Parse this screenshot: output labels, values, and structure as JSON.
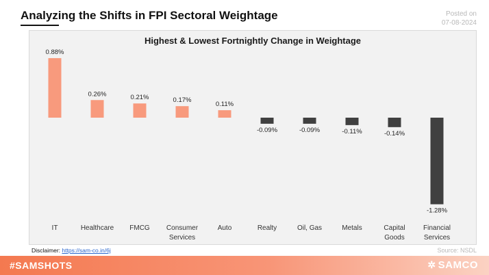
{
  "header": {
    "title": "Analyzing the Shifts in FPI Sectoral Weightage",
    "posted_label": "Posted on",
    "posted_date": "07-08-2024"
  },
  "chart_data": {
    "type": "bar",
    "title": "Highest & Lowest Fortnightly Change in Weightage",
    "categories": [
      [
        "IT"
      ],
      [
        "Healthcare"
      ],
      [
        "FMCG"
      ],
      [
        "Consumer",
        "Services"
      ],
      [
        "Auto"
      ],
      [
        "Realty"
      ],
      [
        "Oil, Gas"
      ],
      [
        "Metals"
      ],
      [
        "Capital",
        "Goods"
      ],
      [
        "Financial",
        "Services"
      ]
    ],
    "values": [
      0.88,
      0.26,
      0.21,
      0.17,
      0.11,
      -0.09,
      -0.09,
      -0.11,
      -0.14,
      -1.28
    ],
    "value_labels": [
      "0.88%",
      "0.26%",
      "0.21%",
      "0.17%",
      "0.11%",
      "-0.09%",
      "-0.09%",
      "-0.11%",
      "-0.14%",
      "-1.28%"
    ],
    "xlabel": "",
    "ylabel": "",
    "ylim": [
      -1.28,
      0.88
    ],
    "grid": false,
    "colors": {
      "positive": "#f89a7d",
      "negative": "#404040"
    }
  },
  "footer": {
    "disclaimer_label": "Disclaimer:",
    "disclaimer_link": "https://sam-co.in/6j",
    "source": "Source: NSDL",
    "hashtag": "#SAMSHOTS",
    "brand": "SAMCO",
    "brand_icon": "samco-logo-icon"
  }
}
